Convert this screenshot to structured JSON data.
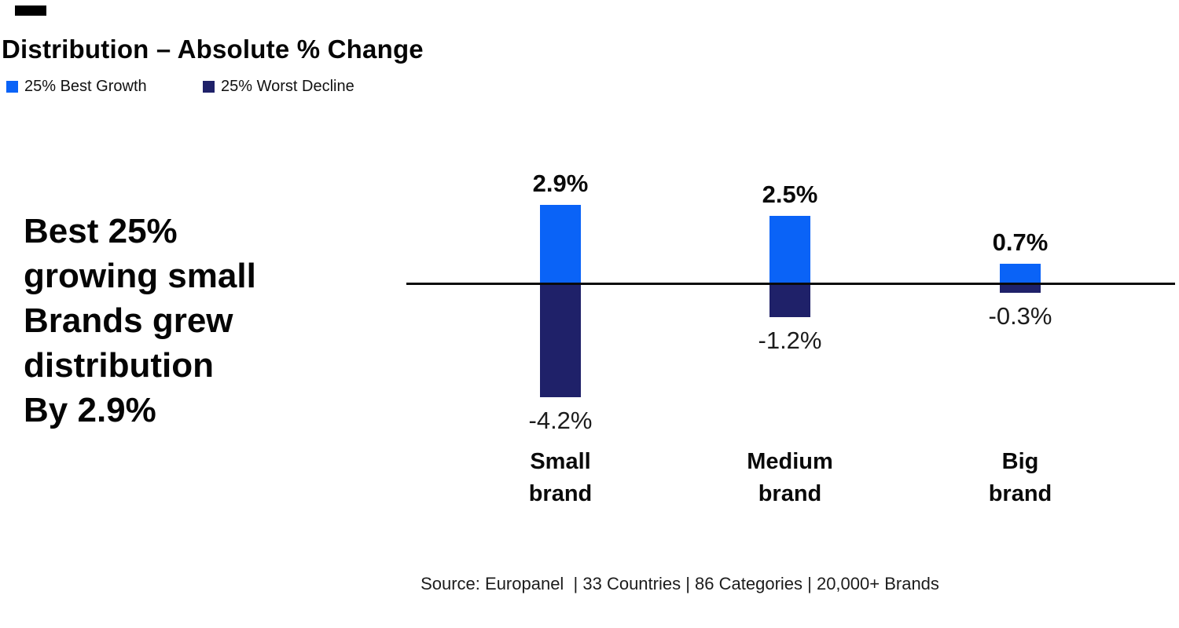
{
  "title": "Distribution – Absolute % Change",
  "legend": {
    "items": [
      {
        "label": "25% Best Growth",
        "color": "#0a63f7"
      },
      {
        "label": "25% Worst Decline",
        "color": "#1f2169"
      }
    ]
  },
  "headline": {
    "lines": [
      "Best 25%",
      "growing small",
      "Brands grew",
      "distribution",
      "By 2.9%"
    ]
  },
  "source": "Source: Europanel  | 33 Countries | 86 Categories | 20,000+ Brands",
  "colors": {
    "best_growth": "#0a63f7",
    "worst_decline": "#1f2169",
    "axis_line": "#0a0a0a"
  },
  "chart_data": {
    "type": "bar",
    "title": "Distribution – Absolute % Change",
    "categories": [
      "Small brand",
      "Medium brand",
      "Big brand"
    ],
    "series": [
      {
        "name": "25% Best Growth",
        "color": "#0a63f7",
        "values": [
          2.9,
          2.5,
          0.7
        ]
      },
      {
        "name": "25% Worst Decline",
        "color": "#1f2169",
        "values": [
          -4.2,
          -1.2,
          -0.3
        ]
      }
    ],
    "labels_positive": [
      "2.9%",
      "2.5%",
      "0.7%"
    ],
    "labels_negative": [
      "-4.2%",
      "-1.2%",
      "-0.3%"
    ],
    "xlabel": "",
    "ylabel": "",
    "ylim": [
      -4.5,
      3.5
    ],
    "baseline": 0,
    "grid": false,
    "legend_position": "top-left",
    "annotation": "Best 25% growing small Brands grew distribution By 2.9%"
  }
}
